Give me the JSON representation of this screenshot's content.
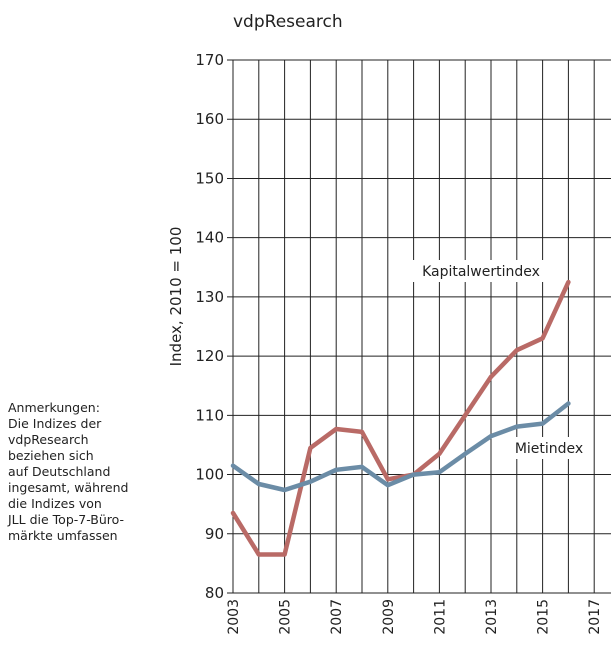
{
  "source_title": "vdpResearch",
  "notes": [
    "Anmerkungen:",
    "Die Indizes der",
    "vdpResearch",
    "beziehen sich",
    "auf Deutschland",
    "ingesamt, während",
    "die Indizes von",
    "JLL die Top-7-Büro-",
    "märkte umfassen"
  ],
  "chart_data": {
    "type": "line",
    "title": "vdpResearch",
    "xlabel": "",
    "ylabel": "Index, 2010 = 100",
    "ylim": [
      80,
      170
    ],
    "xlim": [
      2003,
      2017
    ],
    "yticks": [
      "80",
      "90",
      "100",
      "110",
      "120",
      "130",
      "140",
      "150",
      "160",
      "170"
    ],
    "xticks": [
      "2003",
      "2005",
      "2007",
      "2009",
      "2011",
      "2013",
      "2015",
      "2017"
    ],
    "grid": true,
    "series": [
      {
        "name": "Kapitalwertindex",
        "color": "#b96a66",
        "x": [
          2003,
          2004,
          2005,
          2006,
          2007,
          2008,
          2009,
          2010,
          2011,
          2012,
          2013,
          2014,
          2015,
          2016
        ],
        "values": [
          93.5,
          86.5,
          86.5,
          104.5,
          107.7,
          107.2,
          99.2,
          100.0,
          103.5,
          110.0,
          116.5,
          121.0,
          123.0,
          132.5
        ]
      },
      {
        "name": "Mietindex",
        "color": "#6b8ca6",
        "x": [
          2003,
          2004,
          2005,
          2006,
          2007,
          2008,
          2009,
          2010,
          2011,
          2012,
          2013,
          2014,
          2015,
          2016
        ],
        "values": [
          101.5,
          98.4,
          97.4,
          98.8,
          100.8,
          101.3,
          98.2,
          100.0,
          100.4,
          103.5,
          106.5,
          108.1,
          108.6,
          112.0
        ]
      }
    ]
  }
}
